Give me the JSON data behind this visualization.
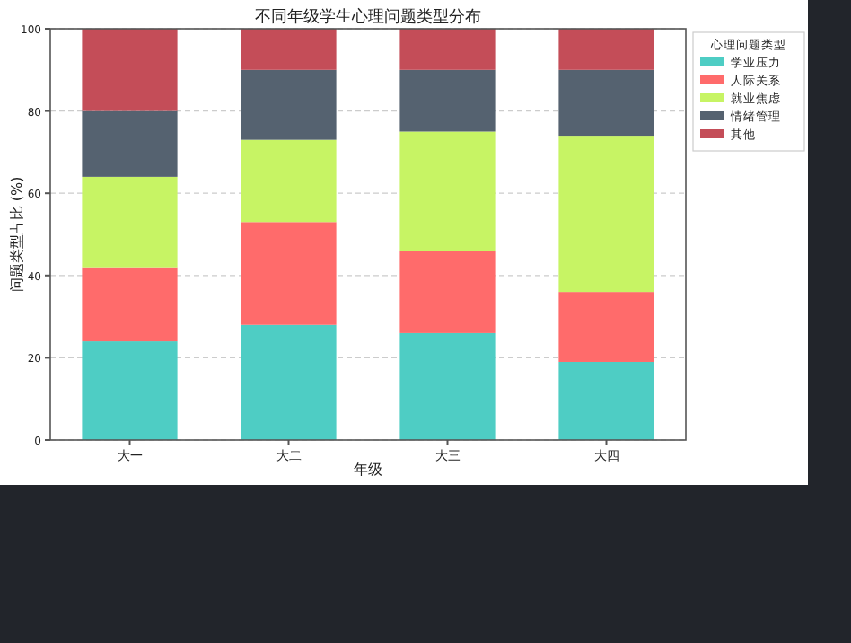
{
  "chart_data": {
    "type": "bar",
    "stacked": true,
    "title": "不同年级学生心理问题类型分布",
    "xlabel": "年级",
    "ylabel": "问题类型占比 (%)",
    "legend_title": "心理问题类型",
    "categories": [
      "大一",
      "大二",
      "大三",
      "大四"
    ],
    "series": [
      {
        "name": "学业压力",
        "color": "#4ecdc4",
        "values": [
          24,
          28,
          26,
          19
        ]
      },
      {
        "name": "人际关系",
        "color": "#ff6b6b",
        "values": [
          18,
          25,
          20,
          17
        ]
      },
      {
        "name": "就业焦虑",
        "color": "#c7f464",
        "values": [
          22,
          20,
          29,
          38
        ]
      },
      {
        "name": "情绪管理",
        "color": "#556270",
        "values": [
          16,
          17,
          15,
          16
        ]
      },
      {
        "name": "其他",
        "color": "#c44d58",
        "values": [
          20,
          10,
          10,
          10
        ]
      }
    ],
    "ylim": [
      0,
      100
    ],
    "yticks": [
      0,
      20,
      40,
      60,
      80,
      100
    ],
    "grid": "y",
    "legend": "right"
  }
}
